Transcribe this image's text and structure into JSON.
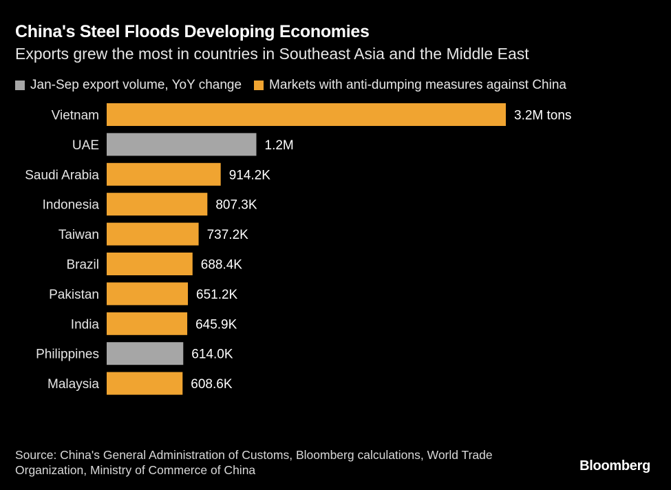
{
  "title": "China's Steel Floods Developing Economies",
  "subtitle": "Exports grew the most in countries in Southeast Asia and the Middle East",
  "legend": [
    {
      "label": "Jan-Sep export volume, YoY change",
      "color": "#a6a6a6"
    },
    {
      "label": "Markets with anti-dumping measures against China",
      "color": "#f0a431"
    }
  ],
  "source": "Source: China's General Administration of Customs, Bloomberg calculations, World Trade Organization, Ministry of Commerce of China",
  "brand": "Bloomberg",
  "chart_data": {
    "type": "bar",
    "orientation": "horizontal",
    "title": "China's Steel Floods Developing Economies",
    "subtitle": "Exports grew the most in countries in Southeast Asia and the Middle East",
    "xlabel": "",
    "ylabel": "",
    "units": "tons",
    "xlim": [
      0,
      3200000
    ],
    "grid": false,
    "legend_position": "top",
    "series": [
      {
        "name": "Jan-Sep export volume, YoY change",
        "color": "#a6a6a6"
      },
      {
        "name": "Markets with anti-dumping measures against China",
        "color": "#f0a431"
      }
    ],
    "bars": [
      {
        "category": "Vietnam",
        "value": 3200000,
        "label": "3.2M tons",
        "anti_dumping": true
      },
      {
        "category": "UAE",
        "value": 1200000,
        "label": "1.2M",
        "anti_dumping": false
      },
      {
        "category": "Saudi Arabia",
        "value": 914200,
        "label": "914.2K",
        "anti_dumping": true
      },
      {
        "category": "Indonesia",
        "value": 807300,
        "label": "807.3K",
        "anti_dumping": true
      },
      {
        "category": "Taiwan",
        "value": 737200,
        "label": "737.2K",
        "anti_dumping": true
      },
      {
        "category": "Brazil",
        "value": 688400,
        "label": "688.4K",
        "anti_dumping": true
      },
      {
        "category": "Pakistan",
        "value": 651200,
        "label": "651.2K",
        "anti_dumping": true
      },
      {
        "category": "India",
        "value": 645900,
        "label": "645.9K",
        "anti_dumping": true
      },
      {
        "category": "Philippines",
        "value": 614000,
        "label": "614.0K",
        "anti_dumping": false
      },
      {
        "category": "Malaysia",
        "value": 608600,
        "label": "608.6K",
        "anti_dumping": true
      }
    ]
  }
}
